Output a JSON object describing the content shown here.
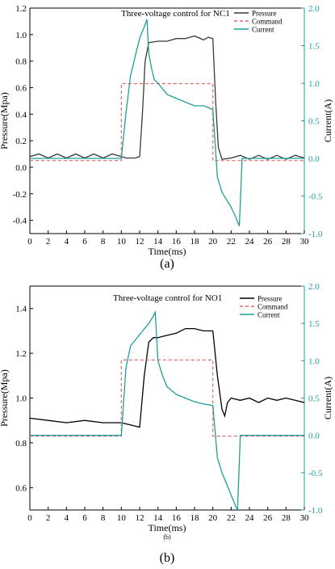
{
  "chart_data": [
    {
      "type": "line",
      "title": "Three-voltage control for NC1",
      "panel_label": "(a)",
      "xlabel": "Time(ms)",
      "ylabel_left": "Pressure(Mpa)",
      "ylabel_right": "Current(A)",
      "xlim": [
        0,
        30
      ],
      "ylim_left": [
        -0.5,
        1.2
      ],
      "ylim_right": [
        -1.0,
        2.0
      ],
      "x_ticks": [
        "0",
        "2",
        "4",
        "6",
        "8",
        "10",
        "12",
        "14",
        "16",
        "18",
        "20",
        "22",
        "24",
        "26",
        "28",
        "30"
      ],
      "y_left_ticks": [
        "-0.4",
        "-0.2",
        "0.0",
        "0.2",
        "0.4",
        "0.6",
        "0.8",
        "1.0",
        "1.2"
      ],
      "y_right_ticks": [
        "-1.0",
        "-0.5",
        "0.0",
        "0.5",
        "1.0",
        "1.5",
        "2.0"
      ],
      "legend": {
        "position": "top-right",
        "entries": [
          "Pressure",
          "Command",
          "Current"
        ]
      },
      "colors": {
        "Pressure": "#3a3a3a",
        "Command": "#e06a6a",
        "Current": "#1f9e9b",
        "right_axis": "#1f9e9b"
      },
      "series": [
        {
          "name": "Pressure",
          "axis": "left",
          "x": [
            0,
            1,
            2,
            3,
            4,
            5,
            6,
            7,
            8,
            9,
            10,
            10.5,
            11,
            11.5,
            12,
            12.3,
            12.6,
            13,
            14,
            15,
            16,
            17,
            18,
            19,
            19.5,
            20,
            20.3,
            20.6,
            21,
            22,
            23,
            24,
            25,
            26,
            27,
            28,
            29,
            30
          ],
          "y": [
            0.08,
            0.1,
            0.07,
            0.1,
            0.07,
            0.1,
            0.07,
            0.1,
            0.07,
            0.1,
            0.08,
            0.07,
            0.07,
            0.07,
            0.08,
            0.4,
            0.8,
            0.94,
            0.95,
            0.95,
            0.97,
            0.97,
            0.99,
            0.96,
            0.98,
            0.97,
            0.5,
            0.15,
            0.06,
            0.07,
            0.09,
            0.06,
            0.09,
            0.06,
            0.09,
            0.06,
            0.09,
            0.07
          ]
        },
        {
          "name": "Command",
          "axis": "left",
          "x": [
            0,
            10,
            10,
            20,
            20,
            30
          ],
          "y": [
            0.05,
            0.05,
            0.63,
            0.63,
            0.05,
            0.05
          ]
        },
        {
          "name": "Current",
          "axis": "right",
          "x": [
            0,
            9,
            10,
            10.5,
            11,
            11.5,
            12,
            12.5,
            12.8,
            13,
            13.3,
            13.6,
            14,
            15,
            16,
            17,
            18,
            19,
            20,
            20.5,
            21,
            21.5,
            22,
            22.5,
            22.9,
            23,
            23.2,
            24,
            26,
            28,
            30
          ],
          "y": [
            0.0,
            0.0,
            0.0,
            0.6,
            1.1,
            1.35,
            1.6,
            1.75,
            1.85,
            1.4,
            1.2,
            1.05,
            1.0,
            0.85,
            0.8,
            0.75,
            0.7,
            0.7,
            0.65,
            -0.25,
            -0.45,
            -0.55,
            -0.65,
            -0.78,
            -0.9,
            -0.6,
            0.0,
            0.0,
            0.0,
            0.0,
            0.0
          ]
        }
      ]
    },
    {
      "type": "line",
      "title": "Three-voltage control for NO1",
      "panel_label": "(b)",
      "inner_label": "(b)",
      "xlabel": "Time(ms)",
      "ylabel_left": "Pressure(Mpa)",
      "ylabel_right": "Current(A)",
      "xlim": [
        0,
        30
      ],
      "ylim_left": [
        0.5,
        1.5
      ],
      "ylim_right": [
        -1.0,
        2.0
      ],
      "x_ticks": [
        "0",
        "2",
        "4",
        "6",
        "8",
        "10",
        "12",
        "14",
        "16",
        "18",
        "20",
        "22",
        "24",
        "26",
        "28",
        "30"
      ],
      "y_left_ticks": [
        "0.6",
        "0.8",
        "1.0",
        "1.2",
        "1.4"
      ],
      "y_right_ticks": [
        "-1.0",
        "-0.5",
        "0.0",
        "0.5",
        "1.0",
        "1.5",
        "2.0"
      ],
      "legend": {
        "position": "top-right",
        "entries": [
          "Pressure",
          "Command",
          "Current"
        ]
      },
      "colors": {
        "Pressure": "#000000",
        "Command": "#e06a6a",
        "Current": "#1f9e9b",
        "right_axis": "#1f9e9b"
      },
      "series": [
        {
          "name": "Pressure",
          "axis": "left",
          "x": [
            0,
            2,
            4,
            6,
            8,
            10,
            11,
            12,
            12.5,
            13,
            13.5,
            14,
            15,
            16,
            17,
            18,
            19,
            20,
            20.5,
            21,
            21.3,
            21.6,
            22,
            23,
            24,
            25,
            26,
            27,
            28,
            29,
            30
          ],
          "y": [
            0.91,
            0.9,
            0.89,
            0.9,
            0.89,
            0.89,
            0.88,
            0.87,
            1.1,
            1.25,
            1.27,
            1.27,
            1.28,
            1.29,
            1.31,
            1.31,
            1.3,
            1.3,
            1.1,
            0.95,
            0.92,
            0.98,
            1.0,
            0.99,
            1.0,
            0.98,
            1.0,
            0.99,
            1.0,
            0.99,
            0.98
          ]
        },
        {
          "name": "Command",
          "axis": "left",
          "x": [
            0,
            10,
            10,
            20,
            20,
            30
          ],
          "y": [
            0.83,
            0.83,
            1.17,
            1.17,
            0.83,
            0.83
          ]
        },
        {
          "name": "Current",
          "axis": "right",
          "x": [
            0,
            9,
            10,
            10.5,
            11,
            12,
            13,
            13.5,
            13.7,
            14,
            14.5,
            15,
            16,
            17,
            18,
            19,
            20,
            20.5,
            21,
            21.5,
            22,
            22.5,
            22.7,
            23,
            24,
            26,
            28,
            30
          ],
          "y": [
            0.0,
            0.0,
            0.0,
            0.9,
            1.2,
            1.35,
            1.5,
            1.6,
            1.65,
            1.0,
            0.8,
            0.65,
            0.55,
            0.5,
            0.45,
            0.42,
            0.4,
            -0.3,
            -0.5,
            -0.65,
            -0.8,
            -0.95,
            -1.0,
            0.0,
            0.0,
            0.0,
            0.0,
            0.0
          ]
        }
      ]
    }
  ]
}
